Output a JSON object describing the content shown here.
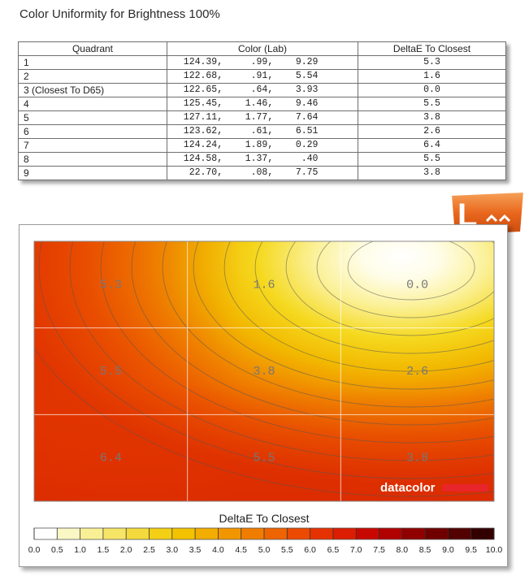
{
  "header": {
    "title": "Color Uniformity for Brightness 100%"
  },
  "table": {
    "columns": [
      "Quadrant",
      "Color (Lab)",
      "DeltaE To Closest"
    ],
    "rows": [
      {
        "quadrant": "1",
        "lab": "  124.39,     .99,    9.29",
        "delta": "5.3"
      },
      {
        "quadrant": "2",
        "lab": "  122.68,     .91,    5.54",
        "delta": "1.6"
      },
      {
        "quadrant": "3 (Closest To D65)",
        "lab": "  122.65,     .64,    3.93",
        "delta": "0.0"
      },
      {
        "quadrant": "4",
        "lab": "  125.45,    1.46,    9.46",
        "delta": "5.5"
      },
      {
        "quadrant": "5",
        "lab": "  127.11,    1.77,    7.64",
        "delta": "3.8"
      },
      {
        "quadrant": "6",
        "lab": "  123.62,     .61,    6.51",
        "delta": "2.6"
      },
      {
        "quadrant": "7",
        "lab": "  124.24,    1.89,    0.29",
        "delta": "6.4"
      },
      {
        "quadrant": "8",
        "lab": "  124.58,    1.37,     .40",
        "delta": "5.5"
      },
      {
        "quadrant": "9",
        "lab": "   22.70,     .08,    7.75",
        "delta": "3.8"
      }
    ]
  },
  "logo": {
    "text": "L"
  },
  "chart_data": {
    "type": "heatmap",
    "title": "",
    "grid_rows": 3,
    "grid_cols": 3,
    "values": [
      [
        5.3,
        1.6,
        0.0
      ],
      [
        5.5,
        3.8,
        2.6
      ],
      [
        6.4,
        5.5,
        3.8
      ]
    ],
    "cell_labels": [
      [
        "5.3",
        "1.6",
        "0.0"
      ],
      [
        "5.5",
        "3.8",
        "2.6"
      ],
      [
        "6.4",
        "5.5",
        "3.8"
      ]
    ],
    "watermark": "datacolor",
    "colorbar": {
      "label": "DeltaE To Closest",
      "range": [
        0,
        10
      ],
      "ticks": [
        "0.0",
        "0.5",
        "1.0",
        "1.5",
        "2.0",
        "2.5",
        "3.0",
        "3.5",
        "4.0",
        "4.5",
        "5.0",
        "5.5",
        "6.0",
        "6.5",
        "7.0",
        "7.5",
        "8.0",
        "8.5",
        "9.0",
        "9.5",
        "10.0"
      ],
      "colors": [
        "#ffffff",
        "#fbf7c4",
        "#f9f095",
        "#f6e567",
        "#f4da3c",
        "#f3cf15",
        "#f3c200",
        "#f2ad00",
        "#f29600",
        "#f07d00",
        "#ee6400",
        "#eb4a00",
        "#e53200",
        "#dc1d00",
        "#c80800",
        "#b00000",
        "#900000",
        "#700000",
        "#520000",
        "#330000"
      ],
      "colors_legend": "colors[i] fills the swatch from ticks[i] to ticks[i+1]"
    },
    "grid": true,
    "legend": "bottom"
  }
}
